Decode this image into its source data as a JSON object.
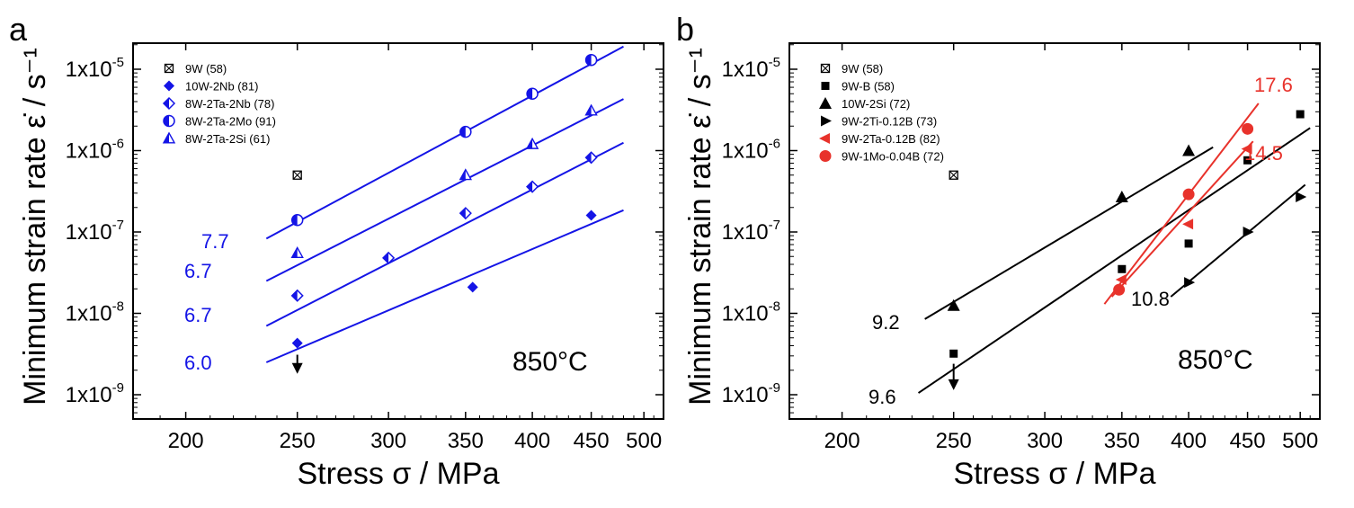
{
  "chart_data": [
    {
      "type": "scatter",
      "panel": "a",
      "title": "",
      "xlabel": "Stress σ / MPa",
      "ylabel": "Minimum strain rate  ε̇ / s⁻¹",
      "xscale": "log",
      "yscale": "log",
      "xlim": [
        180,
        520
      ],
      "ylim": [
        5e-10,
        3e-05
      ],
      "xticks": [
        200,
        250,
        300,
        350,
        400,
        450,
        500
      ],
      "yticks": [
        1e-09,
        1e-08,
        1e-07,
        1e-06,
        1e-05
      ],
      "ytick_labels": [
        "1x10-9",
        "1x10-8",
        "1x10-7",
        "1x10-6",
        "1x10-5"
      ],
      "annotation": "850°C",
      "legend_position": "top-left",
      "series": [
        {
          "name": "9W (58)",
          "marker": "box-x",
          "color": "#000000",
          "points": [
            [
              250,
              5e-07
            ]
          ],
          "fit": null
        },
        {
          "name": "10W-2Nb (81)",
          "marker": "diamond-filled",
          "color": "#1414e6",
          "points": [
            [
              250,
              4.3e-09
            ],
            [
              355,
              2.1e-08
            ],
            [
              450,
              1.6e-07
            ]
          ],
          "fit": {
            "x_range": [
              235,
              480
            ],
            "y_range": [
              2.5e-09,
              1.85e-07
            ],
            "slope_label": "6.0"
          }
        },
        {
          "name": "8W-2Ta-2Nb (78)",
          "marker": "diamond-half",
          "color": "#1414e6",
          "points": [
            [
              250,
              1.65e-08
            ],
            [
              300,
              4.8e-08
            ],
            [
              350,
              1.7e-07
            ],
            [
              400,
              3.6e-07
            ],
            [
              450,
              8.2e-07
            ]
          ],
          "fit": {
            "x_range": [
              235,
              480
            ],
            "y_range": [
              7e-09,
              1.25e-06
            ],
            "slope_label": "6.7"
          }
        },
        {
          "name": "8W-2Ta-2Mo (91)",
          "marker": "circle-half",
          "color": "#1414e6",
          "points": [
            [
              250,
              1.4e-07
            ],
            [
              350,
              1.7e-06
            ],
            [
              400,
              5e-06
            ],
            [
              450,
              1.3e-05
            ]
          ],
          "fit": {
            "x_range": [
              235,
              480
            ],
            "y_range": [
              8.3e-08,
              1.9e-05
            ],
            "slope_label": "7.7"
          }
        },
        {
          "name": "8W-2Ta-2Si (61)",
          "marker": "triangle-half",
          "color": "#1414e6",
          "points": [
            [
              250,
              5.5e-08
            ],
            [
              350,
              5e-07
            ],
            [
              400,
              1.2e-06
            ],
            [
              450,
              3.1e-06
            ]
          ],
          "fit": {
            "x_range": [
              235,
              480
            ],
            "y_range": [
              2.5e-08,
              4.3e-06
            ],
            "slope_label": "6.7"
          }
        }
      ],
      "arrow_marker": {
        "x": 250,
        "from": 3.1e-09,
        "to": 1.9e-09
      }
    },
    {
      "type": "scatter",
      "panel": "b",
      "title": "",
      "xlabel": "Stress σ / MPa",
      "ylabel": "Minimum strain rate  ε̇ / s⁻¹",
      "xscale": "log",
      "yscale": "log",
      "xlim": [
        180,
        520
      ],
      "ylim": [
        5e-10,
        3e-05
      ],
      "xticks": [
        200,
        250,
        300,
        350,
        400,
        450,
        500
      ],
      "yticks": [
        1e-09,
        1e-08,
        1e-07,
        1e-06,
        1e-05
      ],
      "ytick_labels": [
        "1x10-9",
        "1x10-8",
        "1x10-7",
        "1x10-6",
        "1x10-5"
      ],
      "annotation": "850°C",
      "legend_position": "top-left",
      "series": [
        {
          "name": "9W (58)",
          "marker": "box-x",
          "color": "#000000",
          "points": [
            [
              250,
              5e-07
            ]
          ],
          "fit": null
        },
        {
          "name": "9W-B (58)",
          "marker": "square",
          "color": "#000000",
          "points": [
            [
              250,
              3.2e-09
            ],
            [
              350,
              3.5e-08
            ],
            [
              400,
              7.2e-08
            ],
            [
              450,
              7.6e-07
            ],
            [
              500,
              2.8e-06
            ]
          ],
          "fit": {
            "x_range": [
              233,
              510
            ],
            "y_range": [
              1.05e-09,
              1.9e-06
            ],
            "slope_label": "9.6"
          }
        },
        {
          "name": "10W-2Si (72)",
          "marker": "triangle-up",
          "color": "#000000",
          "points": [
            [
              250,
              1.25e-08
            ],
            [
              350,
              2.7e-07
            ],
            [
              400,
              1e-06
            ]
          ],
          "fit": {
            "x_range": [
              236,
              420
            ],
            "y_range": [
              8.5e-09,
              1.1e-06
            ],
            "slope_label": "9.2"
          }
        },
        {
          "name": "9W-2Ti-0.12B (73)",
          "marker": "triangle-right",
          "color": "#000000",
          "points": [
            [
              400,
              2.4e-08
            ],
            [
              450,
              1e-07
            ],
            [
              500,
              2.7e-07
            ]
          ],
          "fit": {
            "x_range": [
              386,
              505
            ],
            "y_range": [
              1.6e-08,
              3.8e-07
            ],
            "slope_label": "10.8"
          }
        },
        {
          "name": "9W-2Ta-0.12B (82)",
          "marker": "triangle-left",
          "color": "#e8322b",
          "points": [
            [
              350,
              2.6e-08
            ],
            [
              400,
              1.25e-07
            ],
            [
              450,
              1.05e-06
            ]
          ],
          "fit": {
            "x_range": [
              343,
              455
            ],
            "y_range": [
              1.6e-08,
              1.3e-06
            ],
            "slope_label": "14.5"
          }
        },
        {
          "name": "9W-1Mo-0.04B (72)",
          "marker": "circle",
          "color": "#e8322b",
          "points": [
            [
              348,
              1.95e-08
            ],
            [
              400,
              2.9e-07
            ],
            [
              450,
              1.85e-06
            ]
          ],
          "fit": {
            "x_range": [
              338,
              460
            ],
            "y_range": [
              1.3e-08,
              3.8e-06
            ],
            "slope_label": "17.6"
          }
        }
      ],
      "arrow_marker": {
        "x": 250,
        "from": 2.4e-09,
        "to": 1.2e-09
      }
    }
  ]
}
